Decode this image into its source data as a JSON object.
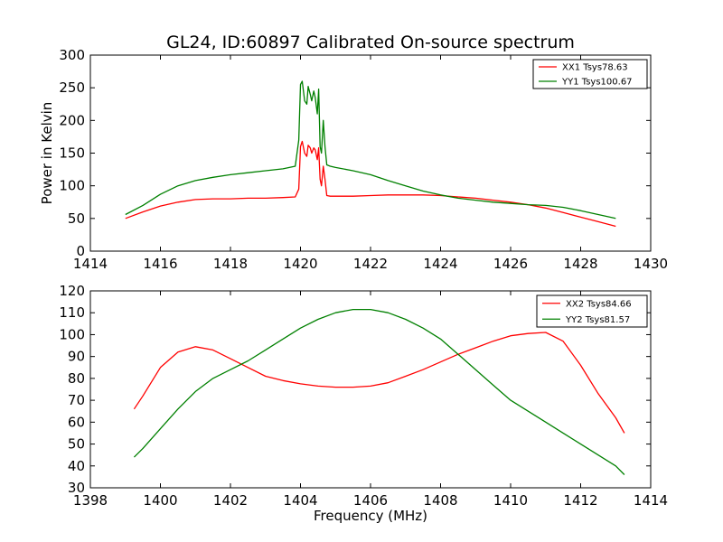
{
  "chart_data": [
    {
      "type": "line",
      "title": "GL24, ID:60897 Calibrated On-source spectrum",
      "xlabel": "",
      "ylabel": "Power in Kelvin",
      "xlim": [
        1414,
        1430
      ],
      "ylim": [
        0,
        300
      ],
      "xticks": [
        1414,
        1416,
        1418,
        1420,
        1422,
        1424,
        1426,
        1428,
        1430
      ],
      "yticks": [
        0,
        50,
        100,
        150,
        200,
        250,
        300
      ],
      "grid": false,
      "legend_position": "top-right",
      "series": [
        {
          "name": "XX1 Tsys78.63",
          "color": "#ff0000",
          "x": [
            1415.0,
            1415.5,
            1416.0,
            1416.5,
            1417.0,
            1417.5,
            1418.0,
            1418.5,
            1419.0,
            1419.5,
            1419.85,
            1419.95,
            1420.0,
            1420.05,
            1420.12,
            1420.18,
            1420.22,
            1420.28,
            1420.32,
            1420.38,
            1420.42,
            1420.48,
            1420.52,
            1420.56,
            1420.6,
            1420.65,
            1420.7,
            1420.75,
            1420.85,
            1421.0,
            1421.5,
            1422.0,
            1422.5,
            1423.0,
            1423.5,
            1424.0,
            1424.5,
            1425.0,
            1425.5,
            1426.0,
            1426.5,
            1427.0,
            1427.5,
            1428.0,
            1428.5,
            1429.0
          ],
          "y": [
            50,
            60,
            69,
            75,
            79,
            80,
            80,
            81,
            81,
            82,
            83,
            95,
            160,
            168,
            150,
            145,
            162,
            158,
            150,
            158,
            155,
            140,
            158,
            110,
            100,
            130,
            110,
            85,
            84,
            84,
            84,
            85,
            86,
            86,
            86,
            85,
            83,
            81,
            78,
            75,
            71,
            66,
            59,
            52,
            45,
            38
          ]
        },
        {
          "name": "YY1 Tsys100.67",
          "color": "#008000",
          "x": [
            1415.0,
            1415.5,
            1416.0,
            1416.5,
            1417.0,
            1417.5,
            1418.0,
            1418.5,
            1419.0,
            1419.5,
            1419.85,
            1419.95,
            1420.0,
            1420.05,
            1420.12,
            1420.18,
            1420.22,
            1420.28,
            1420.32,
            1420.38,
            1420.42,
            1420.48,
            1420.52,
            1420.56,
            1420.6,
            1420.65,
            1420.7,
            1420.75,
            1420.85,
            1421.0,
            1421.5,
            1422.0,
            1422.5,
            1423.0,
            1423.5,
            1424.0,
            1424.5,
            1425.0,
            1425.5,
            1426.0,
            1426.5,
            1427.0,
            1427.5,
            1428.0,
            1428.5,
            1429.0
          ],
          "y": [
            56,
            70,
            87,
            100,
            108,
            113,
            117,
            120,
            123,
            126,
            130,
            170,
            255,
            260,
            230,
            225,
            252,
            240,
            230,
            245,
            235,
            210,
            248,
            160,
            150,
            200,
            160,
            132,
            130,
            128,
            123,
            117,
            108,
            100,
            92,
            86,
            81,
            78,
            75,
            73,
            71,
            70,
            67,
            62,
            56,
            50
          ]
        }
      ]
    },
    {
      "type": "line",
      "title": "",
      "xlabel": "Frequency (MHz)",
      "ylabel": "",
      "xlim": [
        1398,
        1414
      ],
      "ylim": [
        30,
        120
      ],
      "xticks": [
        1398,
        1400,
        1402,
        1404,
        1406,
        1408,
        1410,
        1412,
        1414
      ],
      "yticks": [
        30,
        40,
        50,
        60,
        70,
        80,
        90,
        100,
        110,
        120
      ],
      "grid": false,
      "legend_position": "top-right",
      "series": [
        {
          "name": "XX2 Tsys84.66",
          "color": "#ff0000",
          "x": [
            1399.25,
            1399.5,
            1400.0,
            1400.5,
            1401.0,
            1401.5,
            1402.0,
            1402.5,
            1403.0,
            1403.5,
            1404.0,
            1404.5,
            1405.0,
            1405.5,
            1406.0,
            1406.5,
            1407.0,
            1407.5,
            1408.0,
            1408.5,
            1409.0,
            1409.5,
            1410.0,
            1410.5,
            1411.0,
            1411.5,
            1412.0,
            1412.5,
            1413.0,
            1413.25
          ],
          "y": [
            66,
            72,
            85,
            92,
            94.5,
            93,
            89,
            85,
            81,
            79,
            77.5,
            76.5,
            76,
            76,
            76.5,
            78,
            81,
            84,
            87.5,
            91,
            94,
            97,
            99.5,
            100.5,
            101,
            97,
            86,
            73,
            62,
            55
          ]
        },
        {
          "name": "YY2 Tsys81.57",
          "color": "#008000",
          "x": [
            1399.25,
            1399.5,
            1400.0,
            1400.5,
            1401.0,
            1401.5,
            1402.0,
            1402.5,
            1403.0,
            1403.5,
            1404.0,
            1404.5,
            1405.0,
            1405.5,
            1406.0,
            1406.5,
            1407.0,
            1407.5,
            1408.0,
            1408.5,
            1409.0,
            1409.5,
            1410.0,
            1410.5,
            1411.0,
            1411.5,
            1412.0,
            1412.5,
            1413.0,
            1413.25
          ],
          "y": [
            44,
            48,
            57,
            66,
            74,
            80,
            84,
            88,
            93,
            98,
            103,
            107,
            110,
            111.5,
            111.5,
            110,
            107,
            103,
            98,
            91,
            84,
            77,
            70,
            65,
            60,
            55,
            50,
            45,
            40,
            36
          ]
        }
      ]
    }
  ]
}
